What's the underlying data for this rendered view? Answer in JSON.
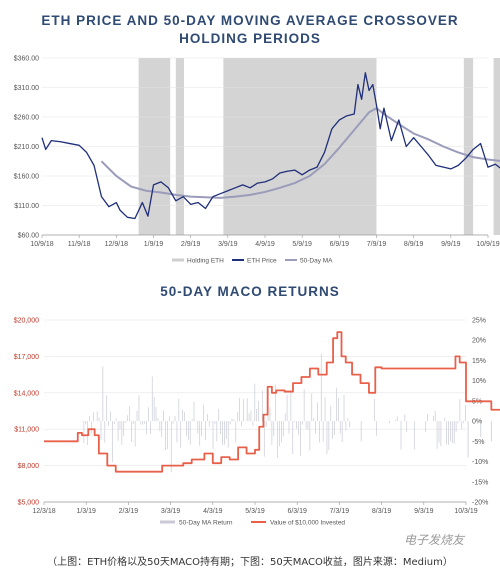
{
  "chart_data": [
    {
      "type": "line",
      "title": "ETH PRICE AND 50-DAY MOVING AVERAGE CROSSOVER HOLDING PERIODS",
      "y_ticks": [
        "$60.00",
        "$110.00",
        "$160.00",
        "$210.00",
        "$260.00",
        "$310.00",
        "$360.00"
      ],
      "ylim": [
        60,
        360
      ],
      "x_ticks": [
        "10/9/18",
        "11/9/18",
        "12/9/18",
        "1/9/19",
        "2/9/19",
        "3/9/19",
        "4/9/19",
        "5/9/19",
        "6/9/19",
        "7/9/19",
        "8/9/19",
        "9/9/19",
        "10/9/19"
      ],
      "legend": [
        "Holding ETH",
        "ETH Price",
        "50-Day MA"
      ],
      "holding_periods": [
        [
          2.6,
          3.45
        ],
        [
          3.6,
          3.82
        ],
        [
          4.88,
          9.0
        ],
        [
          11.35,
          11.6
        ],
        [
          12.15,
          12.38
        ],
        [
          12.75,
          12.95
        ]
      ],
      "series": [
        {
          "name": "ETH Price",
          "color": "#1f2f7a",
          "x": [
            0,
            0.1,
            0.25,
            0.5,
            0.75,
            1.0,
            1.2,
            1.4,
            1.6,
            1.8,
            2.0,
            2.1,
            2.3,
            2.5,
            2.7,
            2.85,
            3.0,
            3.2,
            3.4,
            3.6,
            3.8,
            4.0,
            4.2,
            4.4,
            4.6,
            4.8,
            5.0,
            5.2,
            5.4,
            5.6,
            5.8,
            6.0,
            6.2,
            6.4,
            6.6,
            6.8,
            7.0,
            7.2,
            7.4,
            7.6,
            7.8,
            8.0,
            8.2,
            8.4,
            8.5,
            8.6,
            8.7,
            8.8,
            8.9,
            9.0,
            9.1,
            9.2,
            9.4,
            9.6,
            9.8,
            10.0,
            10.2,
            10.4,
            10.6,
            10.8,
            11.0,
            11.2,
            11.4,
            11.6,
            11.8,
            12.0,
            12.2,
            12.4,
            12.6,
            12.8,
            13.0
          ],
          "y": [
            225,
            205,
            220,
            218,
            215,
            212,
            200,
            178,
            125,
            108,
            115,
            102,
            90,
            88,
            115,
            92,
            145,
            150,
            140,
            118,
            125,
            112,
            115,
            105,
            125,
            130,
            135,
            140,
            145,
            140,
            148,
            150,
            155,
            165,
            168,
            170,
            162,
            170,
            175,
            200,
            240,
            255,
            262,
            265,
            315,
            290,
            335,
            305,
            315,
            280,
            240,
            275,
            220,
            255,
            210,
            225,
            210,
            195,
            178,
            175,
            172,
            178,
            190,
            205,
            215,
            175,
            180,
            170,
            175,
            185,
            180
          ]
        },
        {
          "name": "50-Day MA",
          "color": "#9a9cba",
          "x": [
            1.6,
            2.0,
            2.4,
            2.8,
            3.2,
            3.6,
            4.0,
            4.4,
            4.8,
            5.2,
            5.6,
            6.0,
            6.4,
            6.8,
            7.2,
            7.6,
            8.0,
            8.4,
            8.8,
            9.0,
            9.2,
            9.6,
            10.0,
            10.4,
            10.8,
            11.2,
            11.6,
            12.0,
            12.4,
            12.8,
            13.0
          ],
          "y": [
            185,
            160,
            142,
            135,
            132,
            128,
            125,
            124,
            123,
            125,
            128,
            133,
            140,
            148,
            160,
            180,
            208,
            238,
            268,
            275,
            265,
            248,
            232,
            222,
            210,
            200,
            192,
            188,
            185,
            185,
            185
          ]
        }
      ]
    },
    {
      "type": "line",
      "title": "50-DAY MACO RETURNS",
      "y_ticks_left": [
        "$5,000",
        "$8,000",
        "$11,000",
        "$14,000",
        "$17,000",
        "$20,000"
      ],
      "ylim_left": [
        5000,
        20000
      ],
      "y_ticks_right": [
        "-20%",
        "-15%",
        "-10%",
        "-5%",
        "0%",
        "5%",
        "10%",
        "15%",
        "20%",
        "25%"
      ],
      "ylim_right": [
        -20,
        25
      ],
      "x_ticks": [
        "12/3/18",
        "1/3/19",
        "2/3/19",
        "3/3/19",
        "4/3/19",
        "5/3/19",
        "6/3/19",
        "7/3/19",
        "8/3/19",
        "9/3/19",
        "10/3/19"
      ],
      "legend": [
        "50-Day MA Return",
        "Value of $10,000 Invested"
      ],
      "series": [
        {
          "name": "Value of $10,000 Invested",
          "color": "#e8604a",
          "x": [
            0,
            0.7,
            0.8,
            0.9,
            1.05,
            1.2,
            1.3,
            1.5,
            1.7,
            2.0,
            2.3,
            2.5,
            2.8,
            3.1,
            3.3,
            3.5,
            3.8,
            4.0,
            4.2,
            4.4,
            4.6,
            4.8,
            5.0,
            5.1,
            5.2,
            5.3,
            5.4,
            5.5,
            5.7,
            5.9,
            6.1,
            6.3,
            6.5,
            6.7,
            6.85,
            6.95,
            7.05,
            7.15,
            7.3,
            7.5,
            7.7,
            7.85,
            8.0,
            8.3,
            8.6,
            9.0,
            9.4,
            9.65,
            9.75,
            9.85,
            10.0,
            10.3,
            10.6,
            10.8,
            10.9,
            11.0,
            11.2,
            11.4,
            11.6
          ],
          "y": [
            10000,
            10000,
            10700,
            10500,
            11000,
            10500,
            9000,
            8000,
            7500,
            7500,
            7500,
            7500,
            8000,
            8000,
            8200,
            8500,
            9000,
            8200,
            8700,
            8500,
            9500,
            9000,
            9300,
            11200,
            12200,
            14500,
            14000,
            14200,
            14100,
            14800,
            15300,
            16000,
            15500,
            16500,
            18500,
            19000,
            17000,
            16500,
            15500,
            14800,
            14000,
            16100,
            16000,
            16000,
            16000,
            16000,
            16000,
            16000,
            17000,
            16500,
            13300,
            13300,
            12600,
            12600,
            12600,
            12600,
            12600,
            12600,
            12400
          ]
        }
      ]
    }
  ],
  "caption": "（上图：ETH价格以及50天MACO持有期；下图：50天MACO收益，图片来源：Medium）",
  "watermark": "电子发烧友"
}
